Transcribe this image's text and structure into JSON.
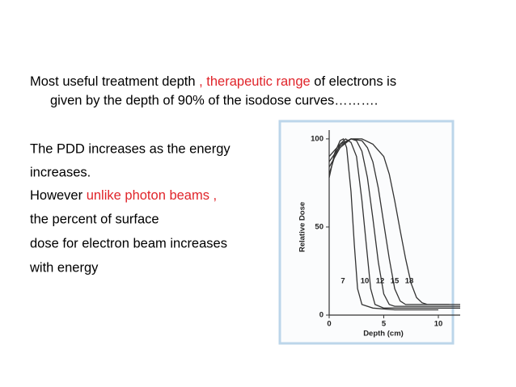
{
  "slide": {
    "para1": [
      "Most useful treatment depth ",
      ", therapeutic range",
      " of electrons is",
      "given by the depth of 90% of the isodose curves………."
    ],
    "para2": [
      "The PDD increases as the energy",
      " increases.",
      "However ",
      "unlike photon beams ,",
      " the percent of surface",
      " dose for electron beam increases",
      " with energy"
    ]
  },
  "chart_data": {
    "type": "line",
    "xlabel": "Depth (cm)",
    "ylabel": "Relative Dose",
    "xlim": [
      0,
      12
    ],
    "ylim": [
      0,
      105
    ],
    "xticks": [
      0,
      5,
      10
    ],
    "yticks": [
      0,
      50,
      100
    ],
    "color": "#333333",
    "series": [
      {
        "name": "7",
        "x": [
          0,
          0.5,
          1,
          1.3,
          1.6,
          2,
          2.3,
          2.6,
          3,
          4,
          6,
          10
        ],
        "values": [
          78,
          92,
          99,
          100,
          95,
          70,
          40,
          15,
          6,
          4,
          3,
          3
        ]
      },
      {
        "name": "10",
        "x": [
          0,
          0.5,
          1,
          1.5,
          2,
          2.5,
          3,
          3.4,
          3.8,
          4.2,
          5,
          8,
          12
        ],
        "values": [
          80,
          90,
          97,
          100,
          98,
          90,
          65,
          40,
          15,
          6,
          4,
          4,
          4
        ]
      },
      {
        "name": "12",
        "x": [
          0,
          1,
          2,
          2.5,
          3,
          3.5,
          4,
          4.5,
          5,
          5.5,
          6,
          8,
          12
        ],
        "values": [
          84,
          95,
          100,
          99,
          93,
          78,
          55,
          30,
          12,
          6,
          5,
          5,
          5
        ]
      },
      {
        "name": "15",
        "x": [
          0,
          1,
          2,
          3,
          3.5,
          4,
          4.5,
          5,
          5.5,
          6,
          6.5,
          7,
          8,
          12
        ],
        "values": [
          87,
          96,
          100,
          99,
          95,
          87,
          72,
          52,
          32,
          15,
          8,
          6,
          6,
          6
        ]
      },
      {
        "name": "18",
        "x": [
          0,
          1,
          2,
          3,
          4,
          5,
          5.5,
          6,
          6.5,
          7,
          7.5,
          8,
          8.5,
          9,
          10,
          11
        ],
        "values": [
          90,
          97,
          100,
          100,
          97,
          90,
          80,
          65,
          48,
          32,
          18,
          10,
          7,
          6,
          6,
          6
        ]
      }
    ]
  }
}
